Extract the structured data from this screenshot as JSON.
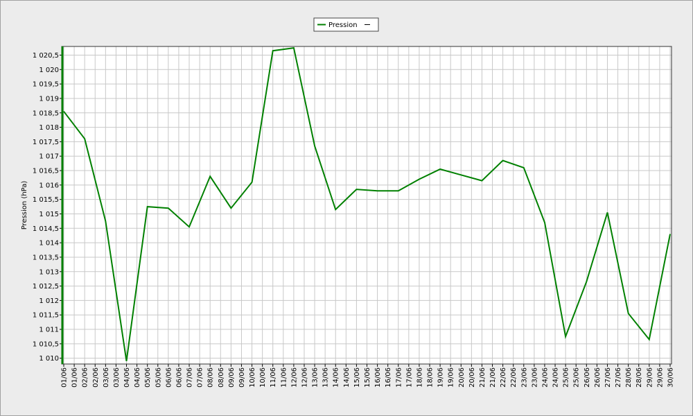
{
  "chart_data": {
    "type": "line",
    "y_label": "Pression (hPa)",
    "categories": [
      "01/06",
      "02/06",
      "03/06",
      "04/06",
      "05/06",
      "06/06",
      "07/06",
      "08/06",
      "09/06",
      "10/06",
      "11/06",
      "12/06",
      "13/06",
      "14/06",
      "15/06",
      "16/06",
      "17/06",
      "18/06",
      "19/06",
      "20/06",
      "21/06",
      "22/06",
      "23/06",
      "24/06",
      "25/06",
      "26/06",
      "27/06",
      "28/06",
      "29/06",
      "30/06"
    ],
    "x_mid_labels": [
      "01/06",
      "02/06",
      "03/06",
      "04/06",
      "05/06",
      "06/06",
      "07/06",
      "08/06",
      "09/06",
      "10/06",
      "11/06",
      "12/06",
      "13/06",
      "14/06",
      "15/06",
      "16/06",
      "17/06",
      "18/06",
      "19/06",
      "20/06",
      "21/06",
      "22/06",
      "23/06",
      "24/06",
      "25/06",
      "26/06",
      "27/06",
      "28/06",
      "29/06"
    ],
    "series": [
      {
        "name": "Pression",
        "color": "#008000",
        "values": [
          1018.55,
          1017.6,
          1014.75,
          1009.9,
          1015.25,
          1015.2,
          1014.55,
          1016.3,
          1015.2,
          1016.1,
          1020.65,
          1020.75,
          1017.35,
          1015.15,
          1015.85,
          1015.8,
          1015.8,
          1016.2,
          1016.55,
          1016.35,
          1016.15,
          1016.85,
          1016.6,
          1014.7,
          1010.75,
          1012.65,
          1015.05,
          1011.55,
          1010.65,
          1014.3
        ]
      }
    ],
    "ylim": [
      1009.8,
      1020.8
    ],
    "yticks": [
      {
        "value": 1010,
        "label": "1 010"
      },
      {
        "value": 1010.5,
        "label": "1 010,5"
      },
      {
        "value": 1011,
        "label": "1 011"
      },
      {
        "value": 1011.5,
        "label": "1 011,5"
      },
      {
        "value": 1012,
        "label": "1 012"
      },
      {
        "value": 1012.5,
        "label": "1 012,5"
      },
      {
        "value": 1013,
        "label": "1 013"
      },
      {
        "value": 1013.5,
        "label": "1 013,5"
      },
      {
        "value": 1014,
        "label": "1 014"
      },
      {
        "value": 1014.5,
        "label": "1 014,5"
      },
      {
        "value": 1015,
        "label": "1 015"
      },
      {
        "value": 1015.5,
        "label": "1 015,5"
      },
      {
        "value": 1016,
        "label": "1 016"
      },
      {
        "value": 1016.5,
        "label": "1 016,5"
      },
      {
        "value": 1017,
        "label": "1 017"
      },
      {
        "value": 1017.5,
        "label": "1 017,5"
      },
      {
        "value": 1018,
        "label": "1 018"
      },
      {
        "value": 1018.5,
        "label": "1 018,5"
      },
      {
        "value": 1019,
        "label": "1 019"
      },
      {
        "value": 1019.5,
        "label": "1 019,5"
      },
      {
        "value": 1020,
        "label": "1 020"
      },
      {
        "value": 1020.5,
        "label": "1 020,5"
      }
    ],
    "grid": true
  }
}
